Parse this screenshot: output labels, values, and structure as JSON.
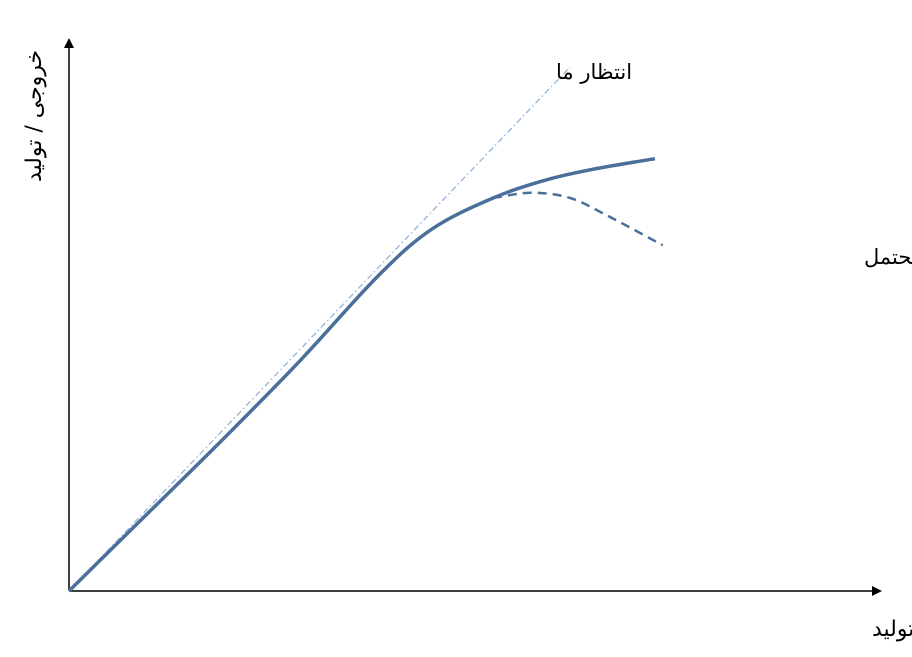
{
  "chart_data": {
    "type": "line",
    "xlabel": "عامل تولید",
    "ylabel": "خروجی / تولید",
    "xlim": [
      0,
      100
    ],
    "ylim": [
      0,
      100
    ],
    "axis_ticks": false,
    "grid": false,
    "annotations": {
      "expectation": "انتظار ما",
      "scenarios": "سناریوهای محتمل"
    },
    "series": [
      {
        "id": "expectation",
        "style": "dash-dot",
        "color": "#8fb4dc",
        "x": [
          0,
          65
        ],
        "y": [
          0,
          100
        ]
      },
      {
        "id": "scenario-plateau",
        "style": "solid",
        "color": "#4a6f9b",
        "x": [
          0,
          10,
          20,
          30,
          40,
          47,
          55,
          62,
          68,
          76
        ],
        "y": [
          0,
          14.5,
          29,
          44,
          60,
          69,
          75,
          78.5,
          80.5,
          82.5
        ]
      },
      {
        "id": "scenario-decline",
        "style": "dashed",
        "color": "#4a6f9b",
        "x": [
          55,
          60,
          65,
          70,
          77
        ],
        "y": [
          75,
          76,
          75,
          71.5,
          66
        ]
      }
    ]
  }
}
